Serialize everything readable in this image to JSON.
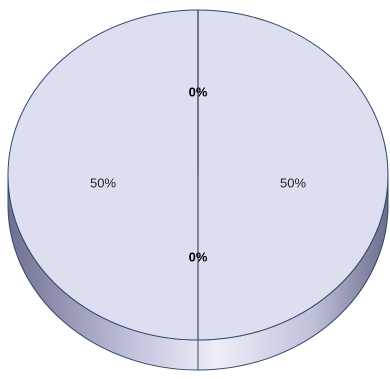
{
  "chart_data": {
    "type": "pie",
    "style": "3d",
    "title": "",
    "slices": [
      {
        "label": "50%",
        "value": 50,
        "color": "#dddff1",
        "label_weight": "normal"
      },
      {
        "label": "0%",
        "value": 0,
        "color": "#dddff1",
        "label_weight": "bold"
      },
      {
        "label": "50%",
        "value": 50,
        "color": "#dddff1",
        "label_weight": "normal"
      },
      {
        "label": "0%",
        "value": 0,
        "color": "#dddff1",
        "label_weight": "bold"
      }
    ],
    "legend": "none"
  },
  "colors": {
    "top_face": "#dddff1",
    "outline": "#2f4a6c",
    "side_dark": "#6f7090",
    "side_mid": "#c7c8e0",
    "side_light": "#eeeef8"
  }
}
